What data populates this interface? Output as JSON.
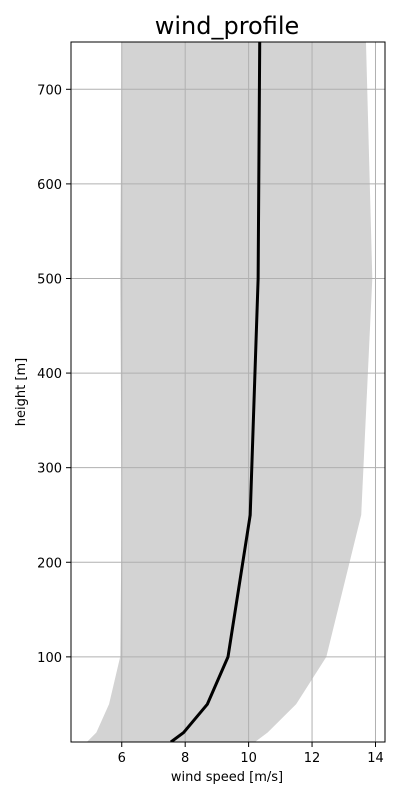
{
  "chart_data": {
    "type": "line",
    "title": "wind_profile",
    "xlabel": "wind speed [m/s]",
    "ylabel": "height [m]",
    "xlim": [
      4.4,
      14.3
    ],
    "ylim": [
      10,
      750
    ],
    "xticks": [
      6,
      8,
      10,
      12,
      14
    ],
    "yticks": [
      100,
      200,
      300,
      400,
      500,
      600,
      700
    ],
    "grid": true,
    "series": [
      {
        "style": "line",
        "color": "#000000",
        "points": [
          {
            "x": 7.55,
            "y": 10
          },
          {
            "x": 7.95,
            "y": 20
          },
          {
            "x": 8.7,
            "y": 50
          },
          {
            "x": 9.35,
            "y": 100
          },
          {
            "x": 10.05,
            "y": 250
          },
          {
            "x": 10.3,
            "y": 500
          },
          {
            "x": 10.35,
            "y": 750
          }
        ]
      }
    ],
    "band": {
      "color": "#d3d3d3",
      "points": [
        {
          "y": 10,
          "min": 4.9,
          "max": 10.2
        },
        {
          "y": 20,
          "min": 5.2,
          "max": 10.6
        },
        {
          "y": 50,
          "min": 5.6,
          "max": 11.5
        },
        {
          "y": 100,
          "min": 5.95,
          "max": 12.45
        },
        {
          "y": 250,
          "min": 6.0,
          "max": 13.55
        },
        {
          "y": 500,
          "min": 5.95,
          "max": 13.9
        },
        {
          "y": 750,
          "min": 6.0,
          "max": 13.7
        }
      ]
    },
    "colors": {
      "grid": "#b0b0b0",
      "axes": "#000000"
    }
  }
}
